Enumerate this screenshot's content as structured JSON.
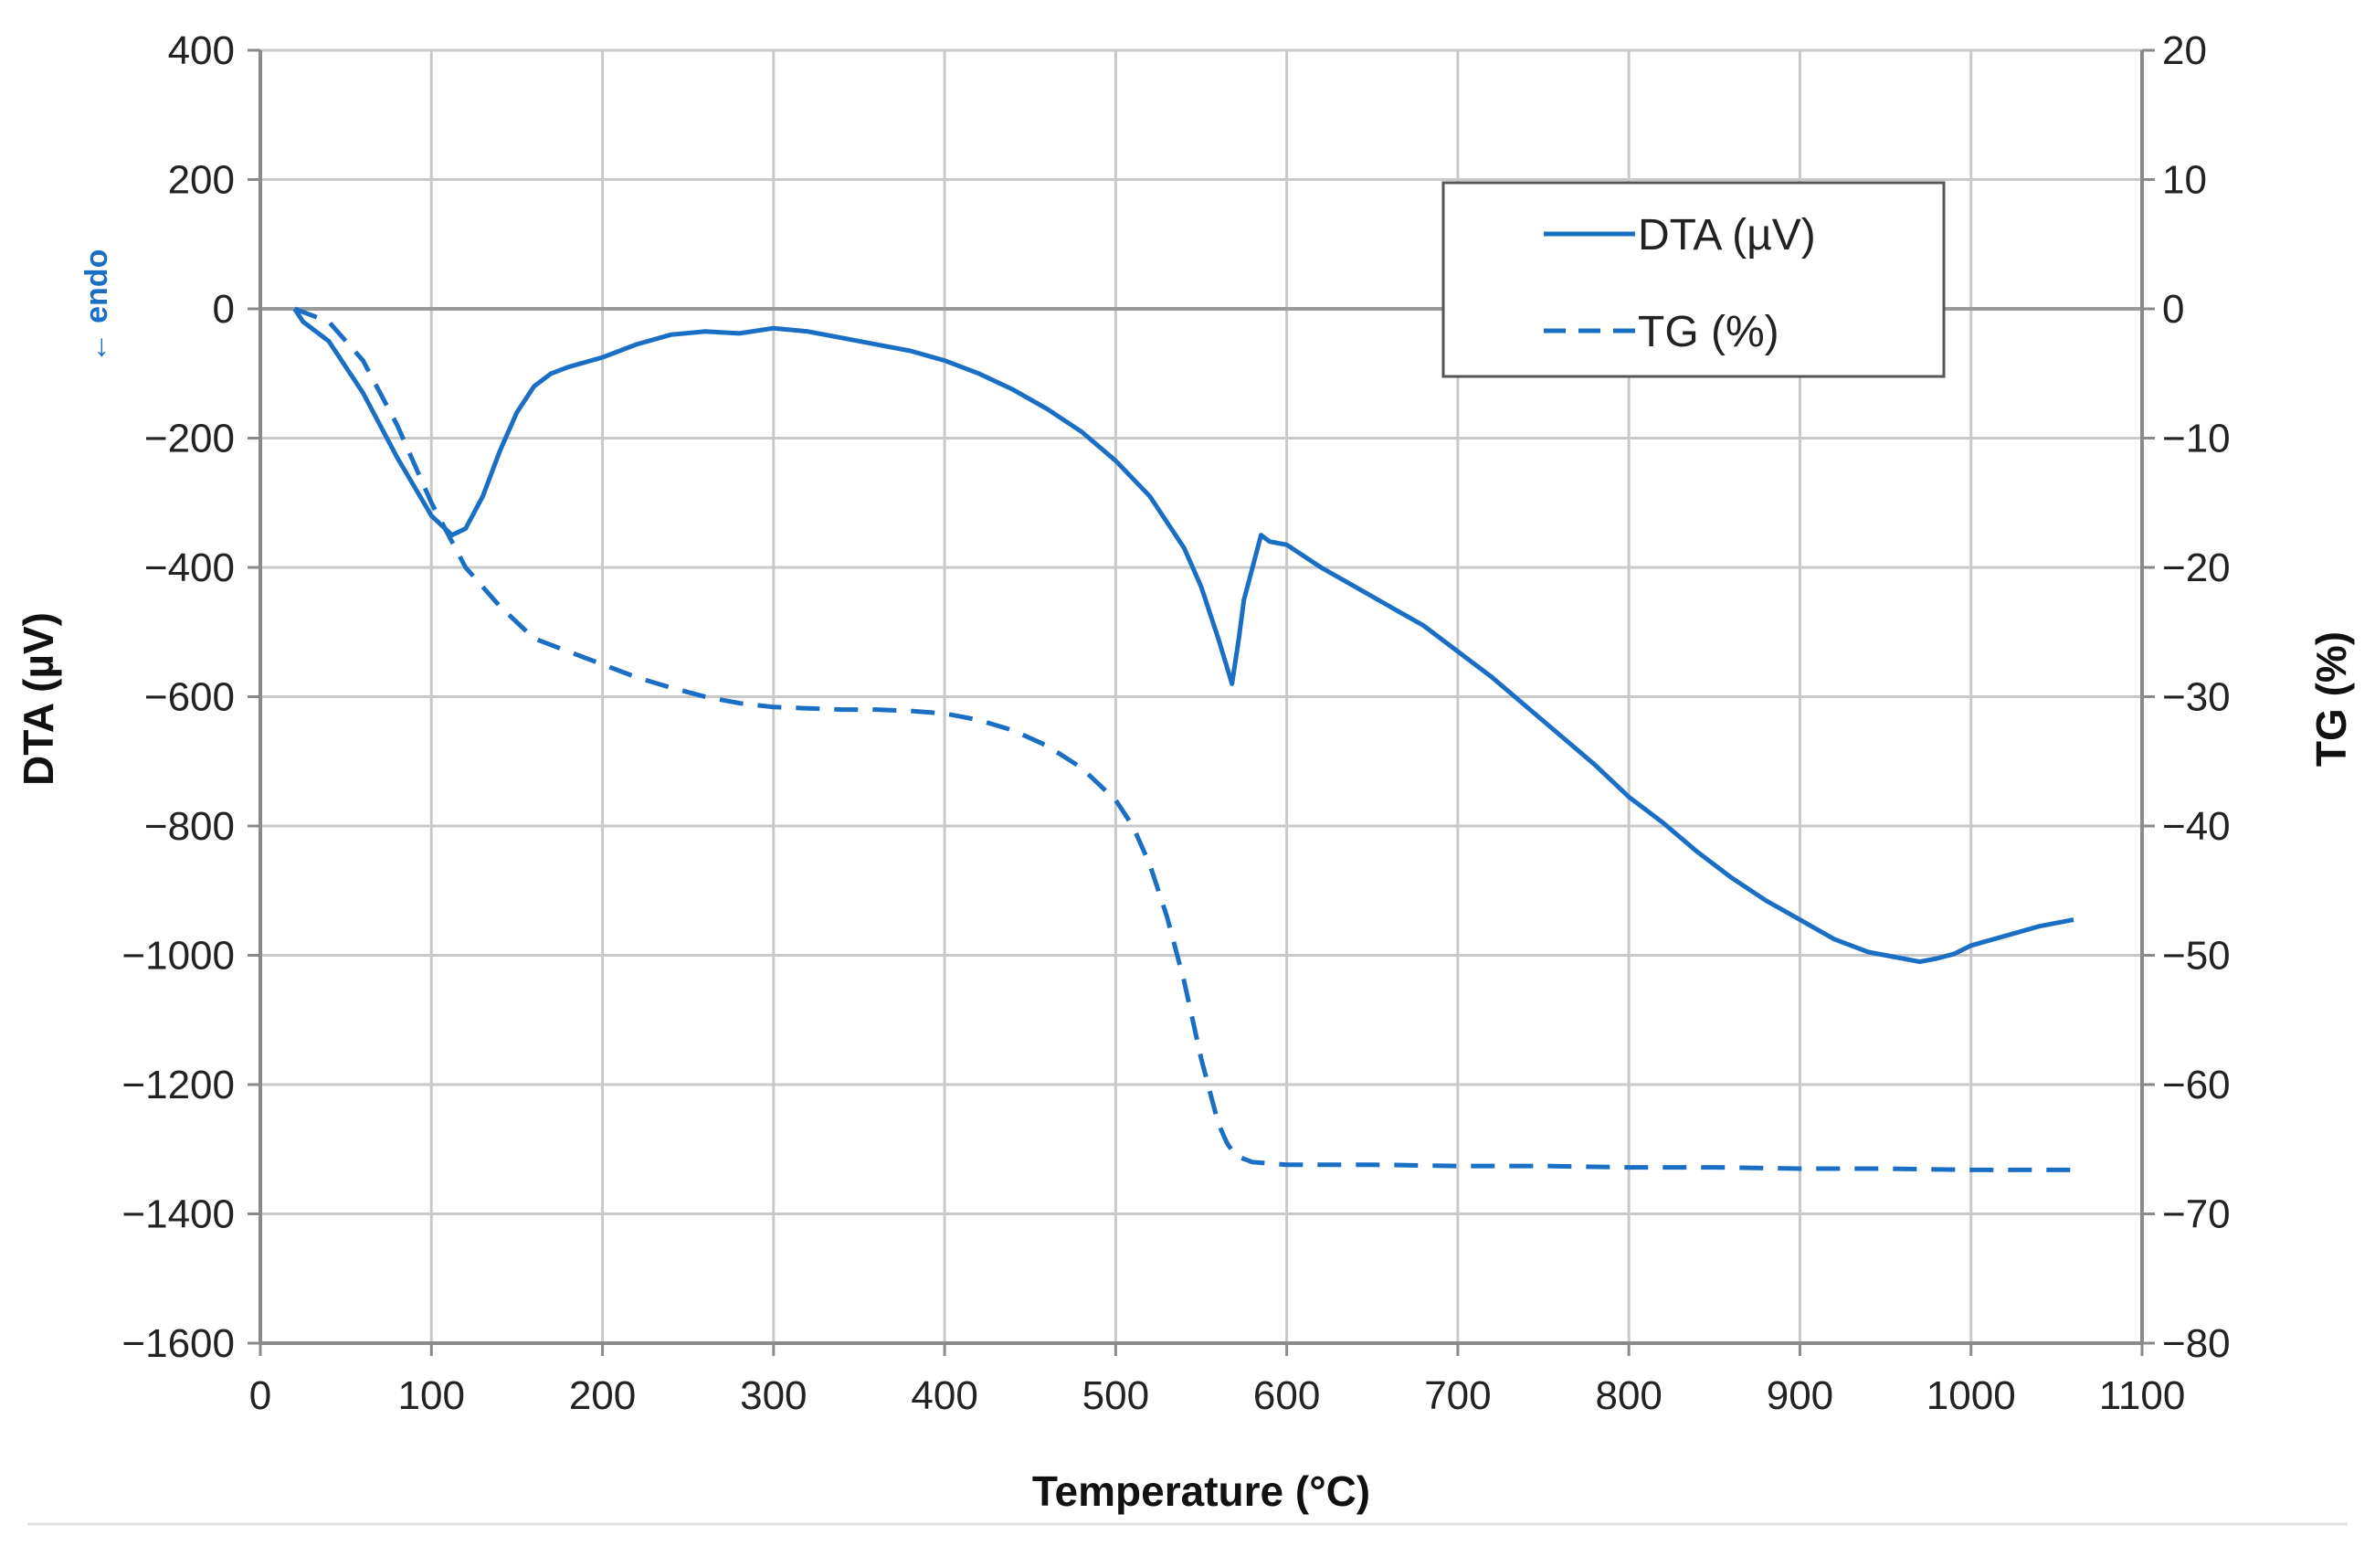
{
  "chart_data": {
    "type": "line",
    "title": "",
    "xlabel": "Temperature (°C)",
    "ylabel_left": "DTA (µV)",
    "ylabel_right": "TG (%)",
    "endo_label": "← endo",
    "xlim": [
      0,
      1100
    ],
    "ylim_left": [
      -1600,
      400
    ],
    "ylim_right": [
      -80,
      20
    ],
    "x_ticks": [
      0,
      100,
      200,
      300,
      400,
      500,
      600,
      700,
      800,
      900,
      1000,
      1100
    ],
    "x_tick_labels": [
      "0",
      "100",
      "200",
      "300",
      "400",
      "500",
      "600",
      "700",
      "800",
      "900",
      "1000",
      "1100"
    ],
    "y_left_ticks": [
      400,
      200,
      0,
      -200,
      -400,
      -600,
      -800,
      -1000,
      -1200,
      -1400,
      -1600
    ],
    "y_left_tick_labels": [
      "400",
      "200",
      "0",
      "−200",
      "−400",
      "−600",
      "−800",
      "−1000",
      "−1200",
      "−1400",
      "−1600"
    ],
    "y_right_ticks": [
      20,
      10,
      0,
      -10,
      -20,
      -30,
      -40,
      -50,
      -60,
      -70,
      -80
    ],
    "y_right_tick_labels": [
      "20",
      "10",
      "0",
      "−10",
      "−20",
      "−30",
      "−40",
      "−50",
      "−60",
      "−70",
      "−80"
    ],
    "grid": true,
    "legend_position": "top-right",
    "series": [
      {
        "name": "DTA (µV)",
        "axis": "left",
        "style": "solid",
        "color": "#1a6fc4",
        "x": [
          20,
          25,
          40,
          60,
          80,
          100,
          112,
          120,
          130,
          140,
          150,
          160,
          170,
          180,
          200,
          220,
          240,
          260,
          280,
          300,
          320,
          340,
          360,
          380,
          400,
          420,
          440,
          460,
          480,
          500,
          520,
          540,
          550,
          560,
          568,
          572,
          575,
          580,
          585,
          590,
          600,
          620,
          640,
          660,
          680,
          700,
          720,
          740,
          760,
          780,
          800,
          820,
          840,
          860,
          880,
          900,
          920,
          940,
          960,
          970,
          980,
          990,
          1000,
          1020,
          1040,
          1060
        ],
        "values": [
          0,
          -20,
          -50,
          -130,
          -230,
          -320,
          -350,
          -340,
          -290,
          -220,
          -160,
          -120,
          -100,
          -90,
          -75,
          -55,
          -40,
          -35,
          -38,
          -30,
          -35,
          -45,
          -55,
          -65,
          -80,
          -100,
          -125,
          -155,
          -190,
          -235,
          -290,
          -370,
          -430,
          -510,
          -580,
          -510,
          -450,
          -400,
          -350,
          -360,
          -365,
          -400,
          -430,
          -460,
          -490,
          -530,
          -570,
          -615,
          -660,
          -705,
          -755,
          -795,
          -840,
          -880,
          -915,
          -945,
          -975,
          -995,
          -1005,
          -1010,
          -1005,
          -998,
          -985,
          -970,
          -955,
          -945
        ]
      },
      {
        "name": "TG (%)",
        "axis": "right",
        "style": "dashed",
        "color": "#1a6fc4",
        "x": [
          20,
          40,
          60,
          80,
          100,
          120,
          140,
          160,
          180,
          200,
          220,
          240,
          260,
          280,
          300,
          320,
          340,
          360,
          380,
          400,
          420,
          440,
          460,
          480,
          500,
          510,
          520,
          530,
          540,
          550,
          560,
          565,
          570,
          580,
          590,
          600,
          650,
          700,
          750,
          800,
          850,
          900,
          950,
          1000,
          1060
        ],
        "values": [
          0,
          -1,
          -4,
          -9,
          -15,
          -20,
          -23,
          -25.5,
          -26.5,
          -27.5,
          -28.5,
          -29.3,
          -30,
          -30.5,
          -30.8,
          -30.9,
          -31,
          -31,
          -31.1,
          -31.3,
          -31.8,
          -32.6,
          -33.8,
          -35.5,
          -38,
          -40,
          -43,
          -47,
          -52,
          -58,
          -63,
          -64.5,
          -65.5,
          -66,
          -66.1,
          -66.2,
          -66.2,
          -66.3,
          -66.3,
          -66.4,
          -66.4,
          -66.5,
          -66.5,
          -66.6,
          -66.6
        ]
      }
    ]
  }
}
